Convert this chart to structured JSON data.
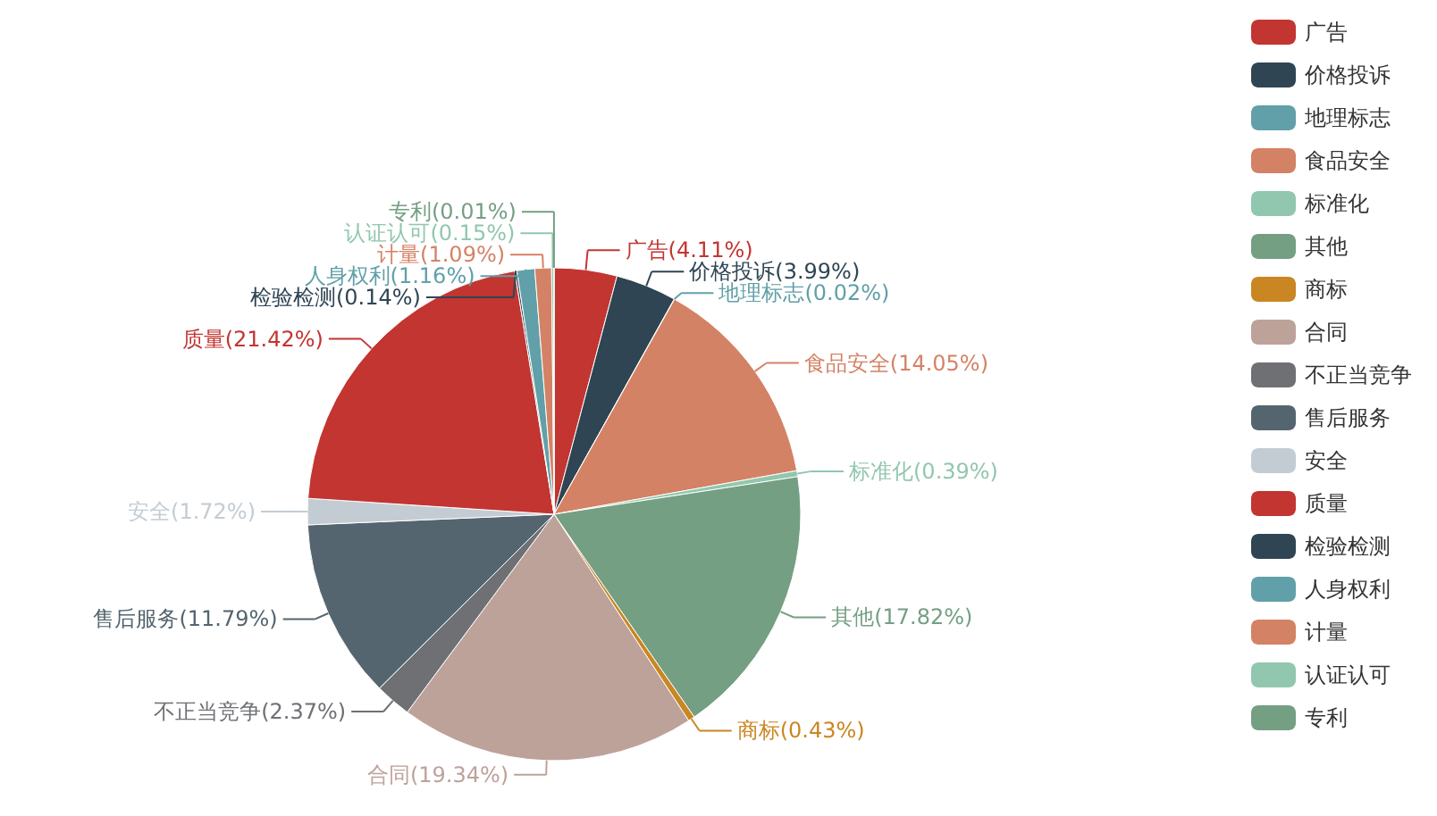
{
  "chart_data": {
    "type": "pie",
    "categories": [
      "广告",
      "价格投诉",
      "地理标志",
      "食品安全",
      "标准化",
      "其他",
      "商标",
      "合同",
      "不正当竞争",
      "售后服务",
      "安全",
      "质量",
      "检验检测",
      "人身权利",
      "计量",
      "认证认可",
      "专利"
    ],
    "values": [
      4.11,
      3.99,
      0.02,
      14.05,
      0.39,
      17.82,
      0.43,
      19.34,
      2.37,
      11.79,
      1.72,
      21.42,
      0.14,
      1.16,
      1.09,
      0.15,
      0.01
    ],
    "colors": [
      "#c23531",
      "#2f4554",
      "#61a0a8",
      "#d48265",
      "#91c7ae",
      "#749f83",
      "#ca8622",
      "#bda29a",
      "#6e7074",
      "#546570",
      "#c4ccd3",
      "#c23531",
      "#2f4554",
      "#61a0a8",
      "#d48265",
      "#91c7ae",
      "#749f83"
    ],
    "value_labels": [
      "广告(4.11%)",
      "价格投诉(3.99%)",
      "地理标志(0.02%)",
      "食品安全(14.05%)",
      "标准化(0.39%)",
      "其他(17.82%)",
      "商标(0.43%)",
      "合同(19.34%)",
      "不正当竞争(2.37%)",
      "售后服务(11.79%)",
      "安全(1.72%)",
      "质量(21.42%)",
      "检验检测(0.14%)",
      "人身权利(1.16%)",
      "计量(1.09%)",
      "认证认可(0.15%)",
      "专利(0.01%)"
    ],
    "legend": "right"
  }
}
